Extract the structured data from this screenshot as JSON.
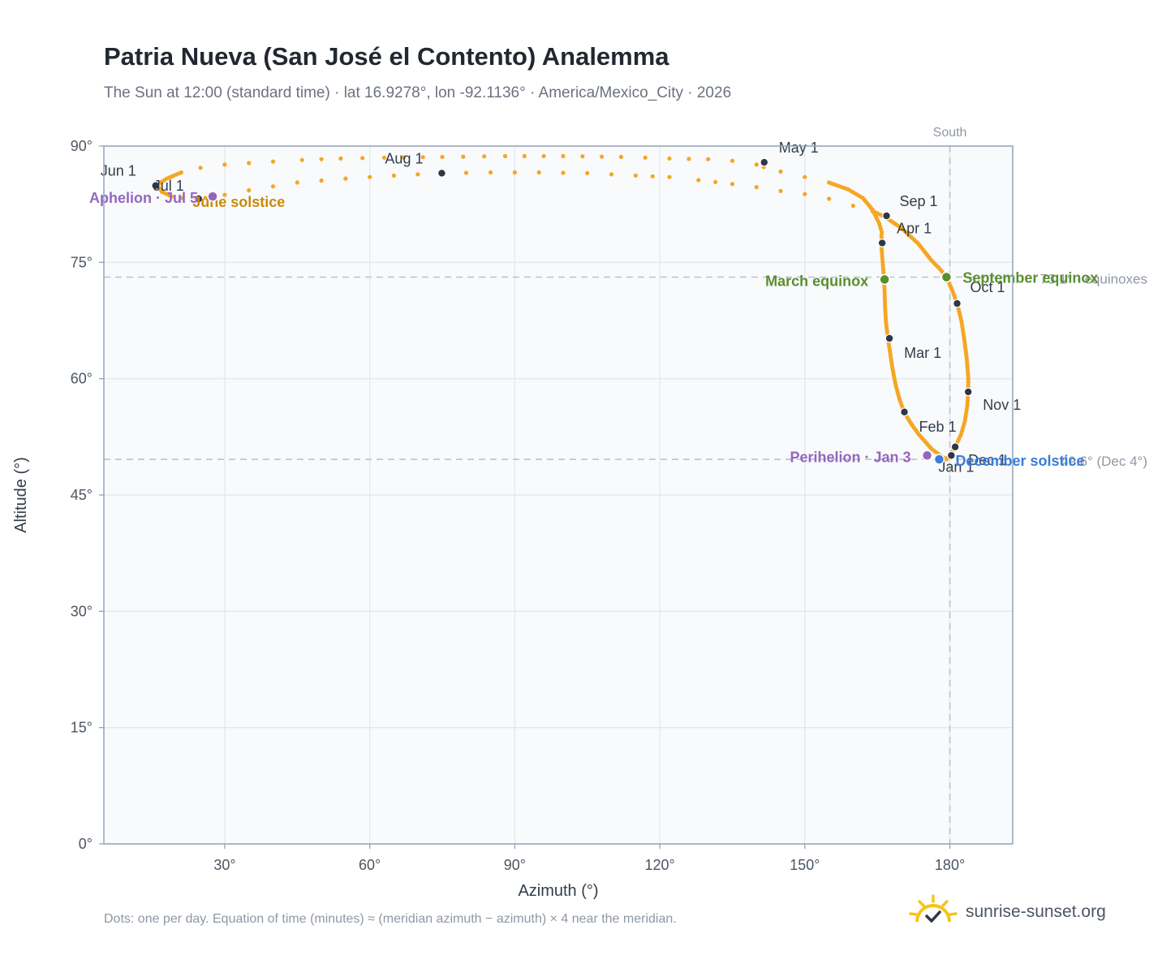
{
  "header": {
    "title": "Patria Nueva (San José el Contento) Analemma",
    "subtitle": "The Sun at 12:00 (standard time) · lat 16.9278°, lon -92.1136° · America/Mexico_City · 2026"
  },
  "footer": {
    "note": "Dots: one per day. Equation of time (minutes) ≈ (meridian azimuth − azimuth) × 4 near the meridian.",
    "brand": "sunrise-sunset.org"
  },
  "colors": {
    "analemma": "#f5a623",
    "month_marker": "#2d3748",
    "solstice_june": "#c98a0c",
    "solstice_december": "#3b7dd8",
    "equinox": "#5a8f2e",
    "apsis": "#9467bd",
    "grid": "#e2e8f0",
    "plot_bg": "#f8fafc",
    "axis": "#94a3b8",
    "reference": "#b8c4cf"
  },
  "chart_data": {
    "type": "scatter",
    "xlabel": "Azimuth (°)",
    "ylabel": "Altitude (°)",
    "xlim": [
      5,
      193
    ],
    "ylim": [
      0,
      90
    ],
    "x_ticks": [
      30,
      60,
      90,
      120,
      150,
      180
    ],
    "x_tick_labels": [
      "30°",
      "60°",
      "90°",
      "120°",
      "150°",
      "180°"
    ],
    "y_ticks": [
      0,
      15,
      30,
      45,
      60,
      75,
      90
    ],
    "y_tick_labels": [
      "0°",
      "15°",
      "30°",
      "45°",
      "60°",
      "75°",
      "90°"
    ],
    "grid": true,
    "south_line": {
      "azimuth": 180,
      "label": "South"
    },
    "reference_lines": [
      {
        "altitude": 73.1,
        "label": "73.1° · equinoxes"
      },
      {
        "altitude": 49.6,
        "label": "49.6° (Dec 4°)"
      }
    ],
    "analemma_points": [
      [
        179.3,
        49.6
      ],
      [
        178.5,
        49.9
      ],
      [
        177.6,
        50.3
      ],
      [
        176.3,
        50.9
      ],
      [
        175.0,
        51.8
      ],
      [
        173.6,
        52.8
      ],
      [
        172.2,
        54.0
      ],
      [
        170.6,
        55.6
      ],
      [
        169.6,
        57.3
      ],
      [
        168.8,
        59.2
      ],
      [
        168.1,
        61.4
      ],
      [
        167.6,
        63.5
      ],
      [
        167.2,
        65.2
      ],
      [
        166.8,
        67.2
      ],
      [
        166.6,
        69.3
      ],
      [
        166.5,
        71.3
      ],
      [
        166.4,
        72.7
      ],
      [
        166.2,
        74.3
      ],
      [
        166.0,
        75.8
      ],
      [
        165.8,
        77.5
      ],
      [
        165.9,
        78.9
      ],
      [
        165.4,
        80.0
      ],
      [
        164.0,
        81.8
      ],
      [
        162.0,
        83.3
      ],
      [
        159.0,
        84.4
      ],
      [
        155.0,
        85.3
      ],
      [
        150.0,
        86.0
      ],
      [
        145.0,
        86.7
      ],
      [
        141.5,
        87.3
      ],
      [
        140.0,
        87.6
      ],
      [
        135.0,
        88.1
      ],
      [
        130.0,
        88.3
      ],
      [
        122.0,
        88.4
      ],
      [
        112.0,
        88.6
      ],
      [
        100.0,
        88.7
      ],
      [
        88.0,
        88.7
      ],
      [
        75.0,
        88.6
      ],
      [
        63.0,
        88.5
      ],
      [
        54.0,
        88.4
      ],
      [
        46.0,
        88.2
      ],
      [
        40.0,
        88.0
      ],
      [
        35.0,
        87.8
      ],
      [
        30.0,
        87.6
      ],
      [
        25.0,
        87.2
      ],
      [
        21.0,
        86.6
      ],
      [
        18.0,
        85.8
      ],
      [
        16.0,
        85.0
      ],
      [
        17.0,
        84.1
      ],
      [
        19.0,
        83.5
      ],
      [
        21.0,
        83.3
      ],
      [
        24.0,
        83.2
      ],
      [
        26.0,
        83.3
      ],
      [
        27.7,
        83.4
      ],
      [
        30.0,
        83.7
      ],
      [
        35.0,
        84.3
      ],
      [
        45.0,
        85.3
      ],
      [
        55.0,
        85.8
      ],
      [
        65.0,
        86.2
      ],
      [
        74.9,
        86.5
      ],
      [
        85.0,
        86.6
      ],
      [
        95.0,
        86.6
      ],
      [
        105.0,
        86.5
      ],
      [
        115.0,
        86.2
      ],
      [
        122.0,
        86.0
      ],
      [
        128.0,
        85.6
      ],
      [
        135.0,
        85.1
      ],
      [
        140.0,
        84.7
      ],
      [
        145.0,
        84.2
      ],
      [
        150.0,
        83.8
      ],
      [
        155.0,
        83.2
      ],
      [
        160.0,
        82.3
      ],
      [
        164.0,
        81.6
      ],
      [
        166.5,
        80.9
      ],
      [
        170.0,
        79.4
      ],
      [
        173.5,
        77.4
      ],
      [
        176.0,
        75.4
      ],
      [
        178.0,
        74.1
      ],
      [
        179.3,
        73.1
      ],
      [
        180.5,
        71.4
      ],
      [
        181.5,
        69.7
      ],
      [
        182.4,
        67.4
      ],
      [
        183.0,
        65.0
      ],
      [
        183.5,
        62.5
      ],
      [
        183.8,
        60.2
      ],
      [
        183.8,
        58.3
      ],
      [
        183.6,
        56.5
      ],
      [
        183.1,
        54.5
      ],
      [
        182.3,
        52.8
      ],
      [
        181.1,
        51.2
      ],
      [
        180.2,
        50.3
      ],
      [
        179.3,
        49.6
      ]
    ],
    "sparse_range_days": 3,
    "month_markers": [
      {
        "label": "Jan 1",
        "az": 180.3,
        "alt": 50.1,
        "dx": -16,
        "dy": 20
      },
      {
        "label": "Feb 1",
        "az": 170.6,
        "alt": 55.7,
        "dx": 18,
        "dy": 24
      },
      {
        "label": "Mar 1",
        "az": 167.5,
        "alt": 65.2,
        "dx": 18,
        "dy": 24
      },
      {
        "label": "Apr 1",
        "az": 166.0,
        "alt": 77.5,
        "dx": 18,
        "dy": -12
      },
      {
        "label": "May 1",
        "az": 141.6,
        "alt": 87.9,
        "dx": 18,
        "dy": -12
      },
      {
        "label": "Jun 1",
        "az": 15.7,
        "alt": 84.9,
        "dx": -68,
        "dy": -12
      },
      {
        "label": "Jul 1",
        "az": 24.6,
        "alt": 83.2,
        "dx": -56,
        "dy": -10
      },
      {
        "label": "Aug 1",
        "az": 74.9,
        "alt": 86.5,
        "dx": -70,
        "dy": -12
      },
      {
        "label": "Sep 1",
        "az": 166.9,
        "alt": 81.0,
        "dx": 16,
        "dy": -12
      },
      {
        "label": "Oct 1",
        "az": 181.5,
        "alt": 69.7,
        "dx": 16,
        "dy": -14
      },
      {
        "label": "Nov 1",
        "az": 183.8,
        "alt": 58.3,
        "dx": 18,
        "dy": 22
      },
      {
        "label": "Dec 1",
        "az": 181.1,
        "alt": 51.2,
        "dx": 16,
        "dy": 22
      }
    ],
    "events": [
      {
        "label": "June solstice",
        "az": 27.7,
        "alt": 83.4,
        "color": "solstice_june",
        "dx": -26,
        "dy": 12,
        "anchor": "start"
      },
      {
        "label": "December solstice",
        "az": 177.8,
        "alt": 49.6,
        "color": "solstice_december",
        "dx": 20,
        "dy": 8,
        "anchor": "start"
      },
      {
        "label": "March equinox",
        "az": 166.5,
        "alt": 72.8,
        "color": "equinox",
        "dx": -20,
        "dy": 8,
        "anchor": "end"
      },
      {
        "label": "September equinox",
        "az": 179.3,
        "alt": 73.1,
        "color": "equinox",
        "dx": 20,
        "dy": 7,
        "anchor": "start"
      },
      {
        "label": "Aphelion · Jul 5",
        "az": 27.5,
        "alt": 83.5,
        "color": "apsis",
        "dx": -18,
        "dy": 8,
        "anchor": "end"
      },
      {
        "label": "Perihelion · Jan 3",
        "az": 175.3,
        "alt": 50.1,
        "color": "apsis",
        "dx": -20,
        "dy": 8,
        "anchor": "end"
      }
    ]
  }
}
